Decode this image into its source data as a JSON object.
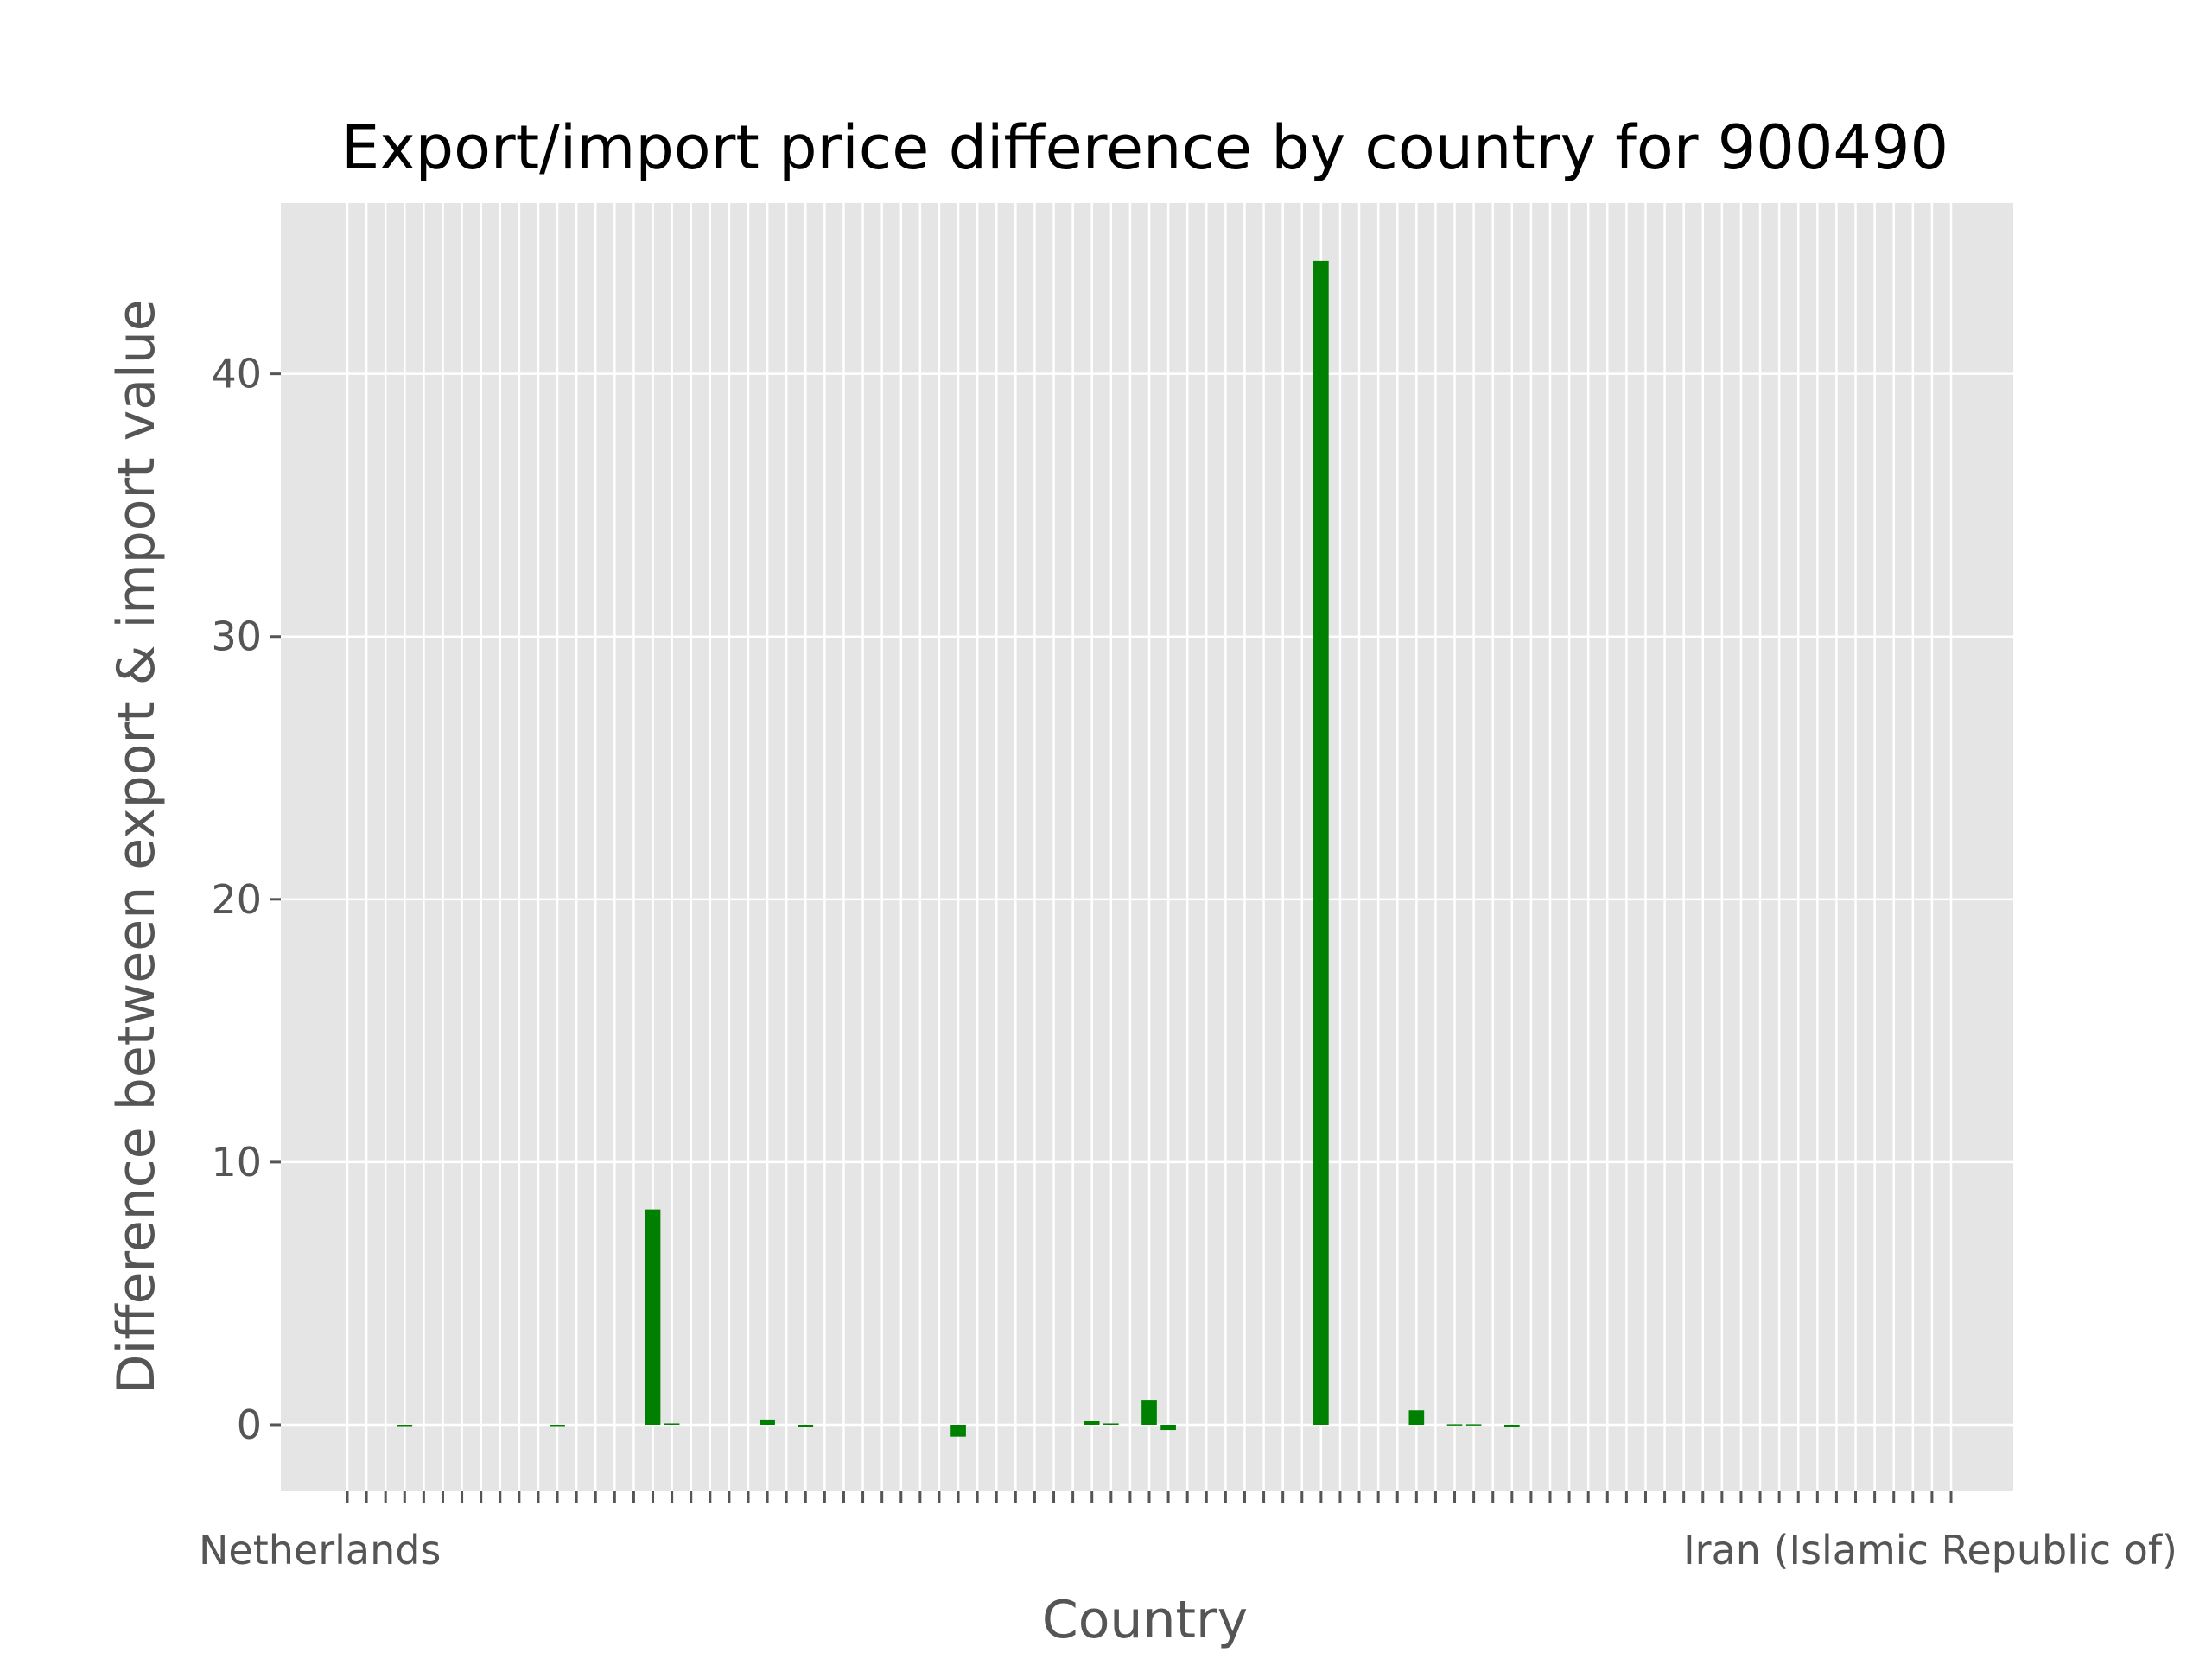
{
  "chart_data": {
    "type": "bar",
    "title": "Export/import price difference by country for 900490",
    "xlabel": "Country",
    "ylabel": "Difference between export & import value",
    "ylim": [
      -2.5,
      46.5
    ],
    "yticks": [
      0,
      10,
      20,
      30,
      40
    ],
    "grid": true,
    "legend": "none",
    "colors": {
      "bar": "#008000",
      "plot_background": "#e5e5e5",
      "grid": "#ffffff",
      "tick_text": "#555555",
      "title": "#000000"
    },
    "category_count": 85,
    "first_category_label": "Netherlands",
    "last_category_label": "Iran (Islamic Republic of)",
    "series": [
      {
        "values": [
          0,
          0,
          0,
          -0.05,
          0,
          0,
          0,
          0,
          0,
          0,
          0,
          -0.04,
          0,
          0,
          0,
          0,
          8.2,
          0.05,
          0,
          0,
          0,
          0,
          0.2,
          0,
          -0.1,
          0,
          0,
          0,
          0,
          0,
          0,
          0,
          -0.45,
          0,
          0,
          0,
          0,
          0,
          0,
          0.15,
          0.05,
          0,
          0.95,
          -0.2,
          0,
          0,
          0,
          0,
          0,
          0,
          0,
          44.3,
          0,
          0,
          0,
          0,
          0.55,
          0,
          0.02,
          0.02,
          0,
          -0.1,
          0,
          0,
          0,
          0,
          0,
          0,
          0,
          0,
          0,
          0,
          0,
          0,
          0,
          0,
          0,
          0,
          0,
          0,
          0,
          0,
          0,
          0,
          0
        ]
      }
    ]
  }
}
